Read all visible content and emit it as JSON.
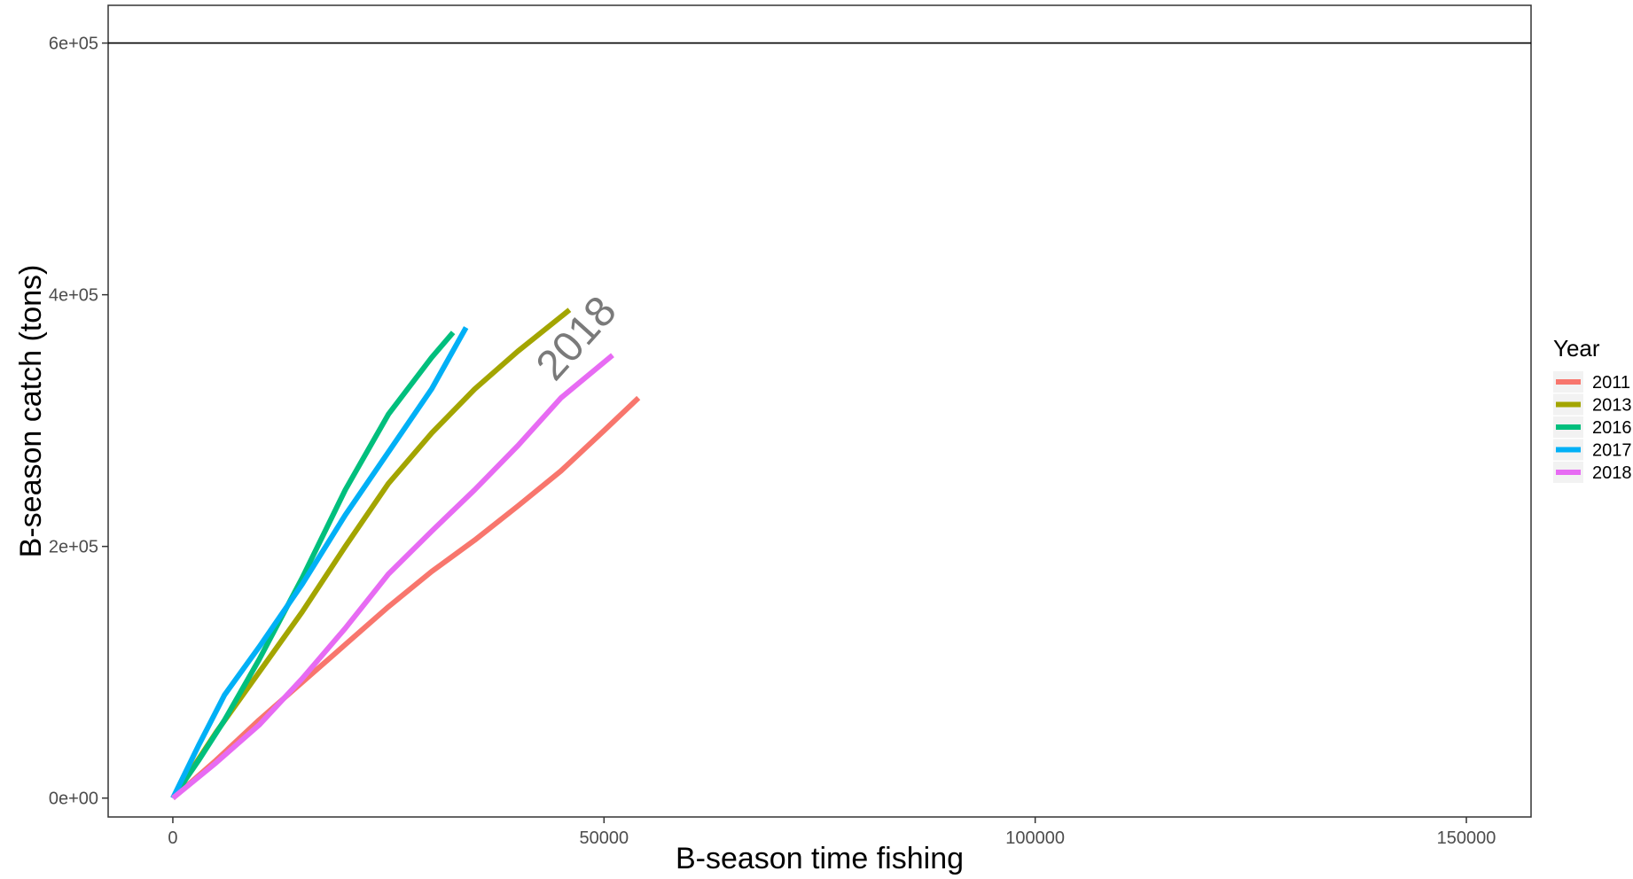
{
  "chart_data": {
    "type": "line",
    "title": "",
    "xlabel": "B-season time fishing",
    "ylabel": "B-season catch (tons)",
    "xlim": [
      -7500,
      157500
    ],
    "ylim": [
      -15000,
      630000
    ],
    "x_ticks": [
      0,
      50000,
      100000,
      150000
    ],
    "x_tick_labels": [
      "0",
      "50000",
      "100000",
      "150000"
    ],
    "y_ticks": [
      0,
      200000,
      400000,
      600000
    ],
    "y_tick_labels": [
      "0e+00",
      "2e+05",
      "4e+05",
      "6e+05"
    ],
    "grid": false,
    "hline": 600000,
    "legend": {
      "title": "Year",
      "placement": "right"
    },
    "annotation": {
      "text": "2018",
      "x": 48000,
      "y": 358000
    },
    "series": [
      {
        "name": "2011",
        "color": "#F8766D",
        "x": [
          0,
          5000,
          10000,
          15000,
          20000,
          25000,
          30000,
          35000,
          40000,
          45000,
          50000,
          54000
        ],
        "y": [
          0,
          30000,
          62000,
          92000,
          122000,
          152000,
          180000,
          205000,
          232000,
          260000,
          292000,
          318000
        ]
      },
      {
        "name": "2013",
        "color": "#A3A500",
        "x": [
          0,
          5000,
          10000,
          15000,
          20000,
          25000,
          30000,
          35000,
          40000,
          46000
        ],
        "y": [
          0,
          52000,
          100000,
          148000,
          200000,
          250000,
          290000,
          325000,
          355000,
          388000
        ]
      },
      {
        "name": "2016",
        "color": "#00BF7D",
        "x": [
          0,
          3000,
          6000,
          10000,
          15000,
          20000,
          25000,
          30000,
          32500
        ],
        "y": [
          0,
          30000,
          62000,
          110000,
          175000,
          245000,
          305000,
          350000,
          370000
        ]
      },
      {
        "name": "2017",
        "color": "#00B0F6",
        "x": [
          0,
          3000,
          6000,
          10000,
          15000,
          20000,
          25000,
          30000,
          34000
        ],
        "y": [
          0,
          42000,
          82000,
          120000,
          170000,
          225000,
          275000,
          325000,
          374000
        ]
      },
      {
        "name": "2018",
        "color": "#E76BF3",
        "x": [
          0,
          5000,
          10000,
          15000,
          20000,
          25000,
          30000,
          35000,
          40000,
          45000,
          51000
        ],
        "y": [
          0,
          28000,
          58000,
          95000,
          135000,
          178000,
          212000,
          245000,
          280000,
          318000,
          352000
        ]
      }
    ]
  }
}
